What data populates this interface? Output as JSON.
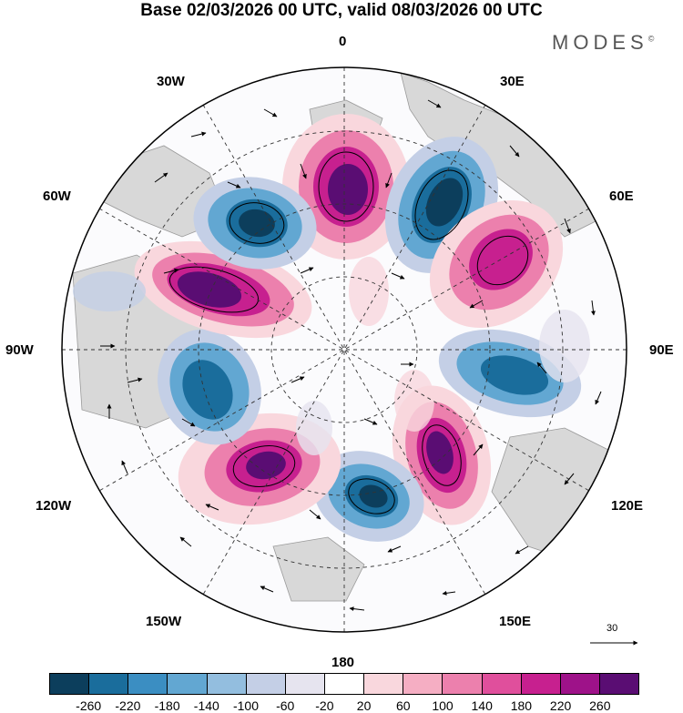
{
  "header": {
    "title": "Base 02/03/2026 00 UTC, valid 08/03/2026 00 UTC",
    "brand": "MODES",
    "brand_mark": "©"
  },
  "longitude_labels": {
    "top": "0",
    "top_left": "30W",
    "top_right": "30E",
    "upper_left": "60W",
    "upper_right": "60E",
    "left": "90W",
    "right": "90E",
    "lower_left": "120W",
    "lower_right": "120E",
    "bottom_left": "150W",
    "bottom_right": "150E",
    "bottom": "180"
  },
  "reference_vector": {
    "label": "30"
  },
  "colorbar": {
    "colors": [
      "#0c3e5c",
      "#1a6d9c",
      "#3b8ec2",
      "#62a7d2",
      "#93bedf",
      "#c4cfe6",
      "#e6e4ef",
      "#ffffff",
      "#f9d7dd",
      "#f5aec3",
      "#ec80ad",
      "#e04f9c",
      "#c7208f",
      "#9e1289",
      "#5a0d73"
    ],
    "ticks": [
      "-260",
      "-220",
      "-180",
      "-140",
      "-100",
      "-60",
      "-20",
      "20",
      "60",
      "100",
      "140",
      "180",
      "220",
      "260"
    ]
  },
  "anomaly_cells": [
    {
      "name": "anomaly-positive-north",
      "value": 260
    },
    {
      "name": "anomaly-negative-northeast",
      "value": -260
    },
    {
      "name": "anomaly-positive-east",
      "value": 220
    },
    {
      "name": "anomaly-negative-east",
      "value": -180
    },
    {
      "name": "anomaly-positive-southeast",
      "value": 260
    },
    {
      "name": "anomaly-negative-south",
      "value": -260
    },
    {
      "name": "anomaly-positive-southwest",
      "value": 260
    },
    {
      "name": "anomaly-negative-west",
      "value": -180
    },
    {
      "name": "anomaly-positive-northwest",
      "value": 260
    },
    {
      "name": "anomaly-negative-northwest",
      "value": -260
    }
  ]
}
